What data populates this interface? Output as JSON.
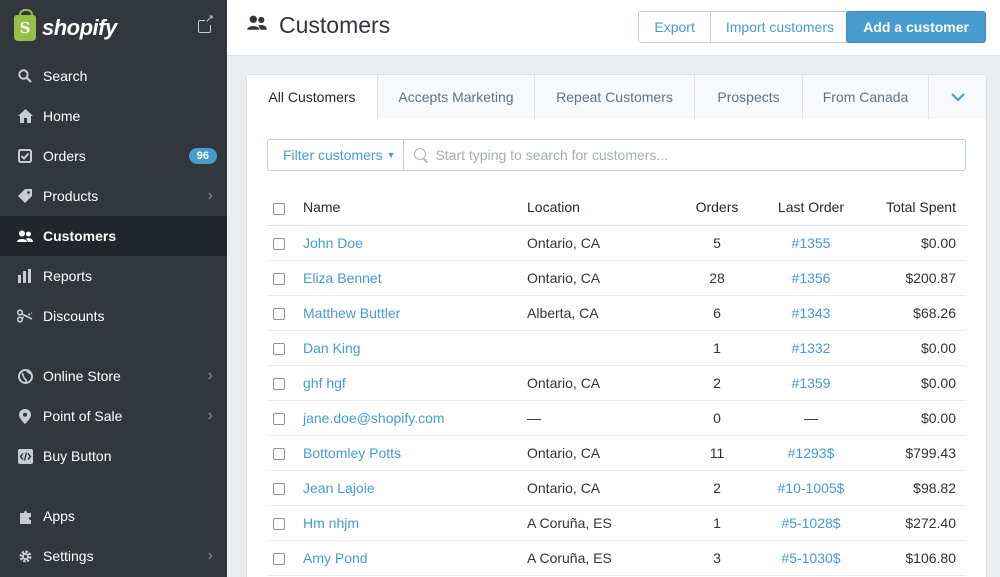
{
  "brand": {
    "name": "shopify",
    "logo_glyph": "S"
  },
  "sidebar": {
    "items": [
      {
        "label": "Search",
        "icon": "search-icon"
      },
      {
        "label": "Home",
        "icon": "home-icon"
      },
      {
        "label": "Orders",
        "icon": "orders-icon",
        "badge": "96"
      },
      {
        "label": "Products",
        "icon": "tag-icon"
      },
      {
        "label": "Customers",
        "icon": "customers-icon",
        "active": true
      },
      {
        "label": "Reports",
        "icon": "bar-chart-icon"
      },
      {
        "label": "Discounts",
        "icon": "scissors-icon"
      },
      {
        "label": "Online Store",
        "icon": "globe-icon"
      },
      {
        "label": "Point of Sale",
        "icon": "map-pin-icon"
      },
      {
        "label": "Buy Button",
        "icon": "code-icon"
      },
      {
        "label": "Apps",
        "icon": "puzzle-icon"
      },
      {
        "label": "Settings",
        "icon": "gear-icon"
      }
    ]
  },
  "header": {
    "title": "Customers",
    "export_label": "Export",
    "import_label": "Import customers",
    "add_label": "Add a customer"
  },
  "tabs": [
    {
      "label": "All Customers",
      "active": true
    },
    {
      "label": "Accepts Marketing"
    },
    {
      "label": "Repeat Customers"
    },
    {
      "label": "Prospects"
    },
    {
      "label": "From Canada"
    }
  ],
  "filter": {
    "button_label": "Filter customers",
    "search_placeholder": "Start typing to search for customers..."
  },
  "table": {
    "columns": [
      "Name",
      "Location",
      "Orders",
      "Last Order",
      "Total Spent"
    ],
    "rows": [
      {
        "name": "John Doe",
        "location": "Ontario, CA",
        "orders": "5",
        "last_order": "#1355",
        "total": "$0.00"
      },
      {
        "name": "Eliza Bennet",
        "location": "Ontario, CA",
        "orders": "28",
        "last_order": "#1356",
        "total": "$200.87"
      },
      {
        "name": "Matthew Buttler",
        "location": "Alberta, CA",
        "orders": "6",
        "last_order": "#1343",
        "total": "$68.26"
      },
      {
        "name": "Dan King",
        "location": "",
        "orders": "1",
        "last_order": "#1332",
        "total": "$0.00"
      },
      {
        "name": "ghf hgf",
        "location": "Ontario, CA",
        "orders": "2",
        "last_order": "#1359",
        "total": "$0.00"
      },
      {
        "name": "jane.doe@shopify.com",
        "location": "—",
        "orders": "0",
        "last_order": "—",
        "total": "$0.00"
      },
      {
        "name": "Bottomley Potts",
        "location": "Ontario, CA",
        "orders": "11",
        "last_order": "#1293$",
        "total": "$799.43"
      },
      {
        "name": "Jean Lajoie",
        "location": "Ontario, CA",
        "orders": "2",
        "last_order": "#10-1005$",
        "total": "$98.82"
      },
      {
        "name": "Hm nhjm",
        "location": "A Coruña, ES",
        "orders": "1",
        "last_order": "#5-1028$",
        "total": "$272.40"
      },
      {
        "name": "Amy Pond",
        "location": "A Coruña, ES",
        "orders": "3",
        "last_order": "#5-1030$",
        "total": "$106.80"
      }
    ]
  },
  "colors": {
    "sidebar": "#31373d",
    "accent": "#479ccf",
    "brand_green": "#95bf47"
  }
}
